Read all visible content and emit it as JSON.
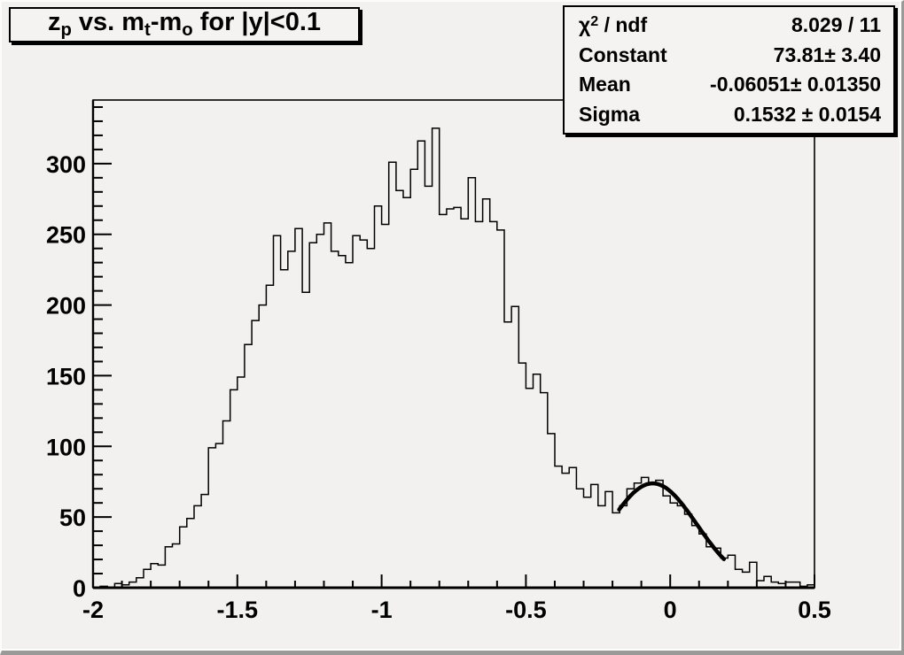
{
  "colors": {
    "canvas_bg": "#f2f1ef",
    "box_bg": "#f4f3f1",
    "line": "#000000",
    "shadow_edge": "#9a9a99"
  },
  "title": {
    "text": "z_p vs. m_t-m_o for |y|<0.1",
    "segments": [
      {
        "t": "z"
      },
      {
        "t": "p",
        "sub": true
      },
      {
        "t": " vs. m"
      },
      {
        "t": "t",
        "sub": true
      },
      {
        "t": "-m"
      },
      {
        "t": "o",
        "sub": true
      },
      {
        "t": " for |y|<0.1"
      }
    ]
  },
  "stats_box": {
    "rows": [
      {
        "label": "χ2 / ndf",
        "label_segments": [
          {
            "t": "χ"
          },
          {
            "t": "2",
            "sup": true
          },
          {
            "t": " / ndf"
          }
        ],
        "value": "8.029 / 11"
      },
      {
        "label": "Constant",
        "label_segments": [
          {
            "t": "Constant"
          }
        ],
        "value": "73.81± 3.40"
      },
      {
        "label": "Mean",
        "label_segments": [
          {
            "t": "Mean"
          }
        ],
        "value": "-0.06051± 0.01350"
      },
      {
        "label": "Sigma",
        "label_segments": [
          {
            "t": "Sigma"
          }
        ],
        "value": "0.1532 ± 0.0154"
      }
    ]
  },
  "chart_data": {
    "type": "bar",
    "subtype": "step-histogram",
    "title": "z_p vs. m_t-m_o for |y|<0.1",
    "xlabel": "",
    "ylabel": "",
    "xlim": [
      -2.0,
      0.5
    ],
    "ylim": [
      0,
      345
    ],
    "grid": false,
    "x_start": -2.0,
    "bin_width": 0.025,
    "values": [
      0,
      1,
      0,
      3,
      2,
      4,
      7,
      13,
      17,
      16,
      29,
      31,
      43,
      49,
      58,
      66,
      99,
      102,
      118,
      140,
      149,
      172,
      189,
      200,
      214,
      249,
      225,
      238,
      254,
      209,
      244,
      250,
      258,
      238,
      235,
      230,
      249,
      246,
      240,
      270,
      257,
      301,
      281,
      276,
      296,
      316,
      284,
      325,
      264,
      268,
      269,
      261,
      290,
      259,
      275,
      259,
      253,
      188,
      199,
      159,
      141,
      151,
      138,
      109,
      86,
      81,
      85,
      70,
      64,
      73,
      58,
      68,
      53,
      58,
      70,
      74,
      78,
      74,
      76,
      65,
      60,
      58,
      52,
      44,
      38,
      29,
      28,
      21,
      23,
      13,
      11,
      18,
      5,
      8,
      4,
      3,
      4,
      4,
      1,
      2
    ],
    "x_ticks": [
      -2,
      -1.5,
      -1,
      -0.5,
      0,
      0.5
    ],
    "x_tick_labels": [
      "-2",
      "-1.5",
      "-1",
      "-0.5",
      "0",
      "0.5"
    ],
    "x_minor_step": 0.1,
    "y_ticks": [
      0,
      50,
      100,
      150,
      200,
      250,
      300
    ],
    "y_tick_labels": [
      "0",
      "50",
      "100",
      "150",
      "200",
      "250",
      "300"
    ],
    "y_minor_step": 10,
    "fit": {
      "type": "gaussian",
      "constant": 73.81,
      "mean": -0.06051,
      "sigma": 0.1532,
      "chi2": 8.029,
      "ndf": 11,
      "draw_range": [
        -0.177,
        0.186
      ]
    },
    "legend_position": "none",
    "stats_box_position": "top-right"
  }
}
